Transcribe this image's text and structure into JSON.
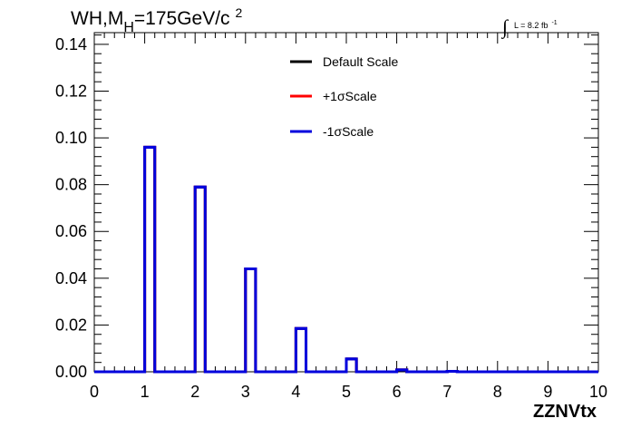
{
  "title": {
    "prefix": "WH,M",
    "subscript": "H",
    "value": "=175GeV/c",
    "superscript": "2"
  },
  "lumi": {
    "integral_symbol": "∫",
    "text": "L = 8.2 fb",
    "superscript": "-1"
  },
  "colors": {
    "default": "#000000",
    "plus": "#ff0000",
    "minus": "#0000dd",
    "axis": "#000000"
  },
  "chart_data": {
    "type": "line",
    "drawstyle": "histogram-step",
    "xlabel": "ZZNVtx",
    "ylabel": "",
    "xlim": [
      0,
      10
    ],
    "ylim": [
      0,
      0.145
    ],
    "xticks": [
      "0",
      "1",
      "2",
      "3",
      "4",
      "5",
      "6",
      "7",
      "8",
      "9",
      "10"
    ],
    "yticks": [
      "0.00",
      "0.02",
      "0.04",
      "0.06",
      "0.08",
      "0.10",
      "0.12",
      "0.14"
    ],
    "bin_width": 0.2,
    "bins": [
      {
        "x0": 1.0,
        "x1": 1.2,
        "value": 0.096
      },
      {
        "x0": 2.0,
        "x1": 2.2,
        "value": 0.079
      },
      {
        "x0": 3.0,
        "x1": 3.2,
        "value": 0.044
      },
      {
        "x0": 4.0,
        "x1": 4.2,
        "value": 0.0185
      },
      {
        "x0": 5.0,
        "x1": 5.2,
        "value": 0.0055
      },
      {
        "x0": 6.0,
        "x1": 6.2,
        "value": 0.0008
      },
      {
        "x0": 7.0,
        "x1": 7.2,
        "value": 0.0002
      }
    ],
    "legend_position": "top-center",
    "series": [
      {
        "name": "Default Scale",
        "color": "#000000"
      },
      {
        "name": "+1σScale",
        "color": "#ff0000"
      },
      {
        "name": "-1σScale",
        "color": "#0000dd"
      }
    ]
  }
}
